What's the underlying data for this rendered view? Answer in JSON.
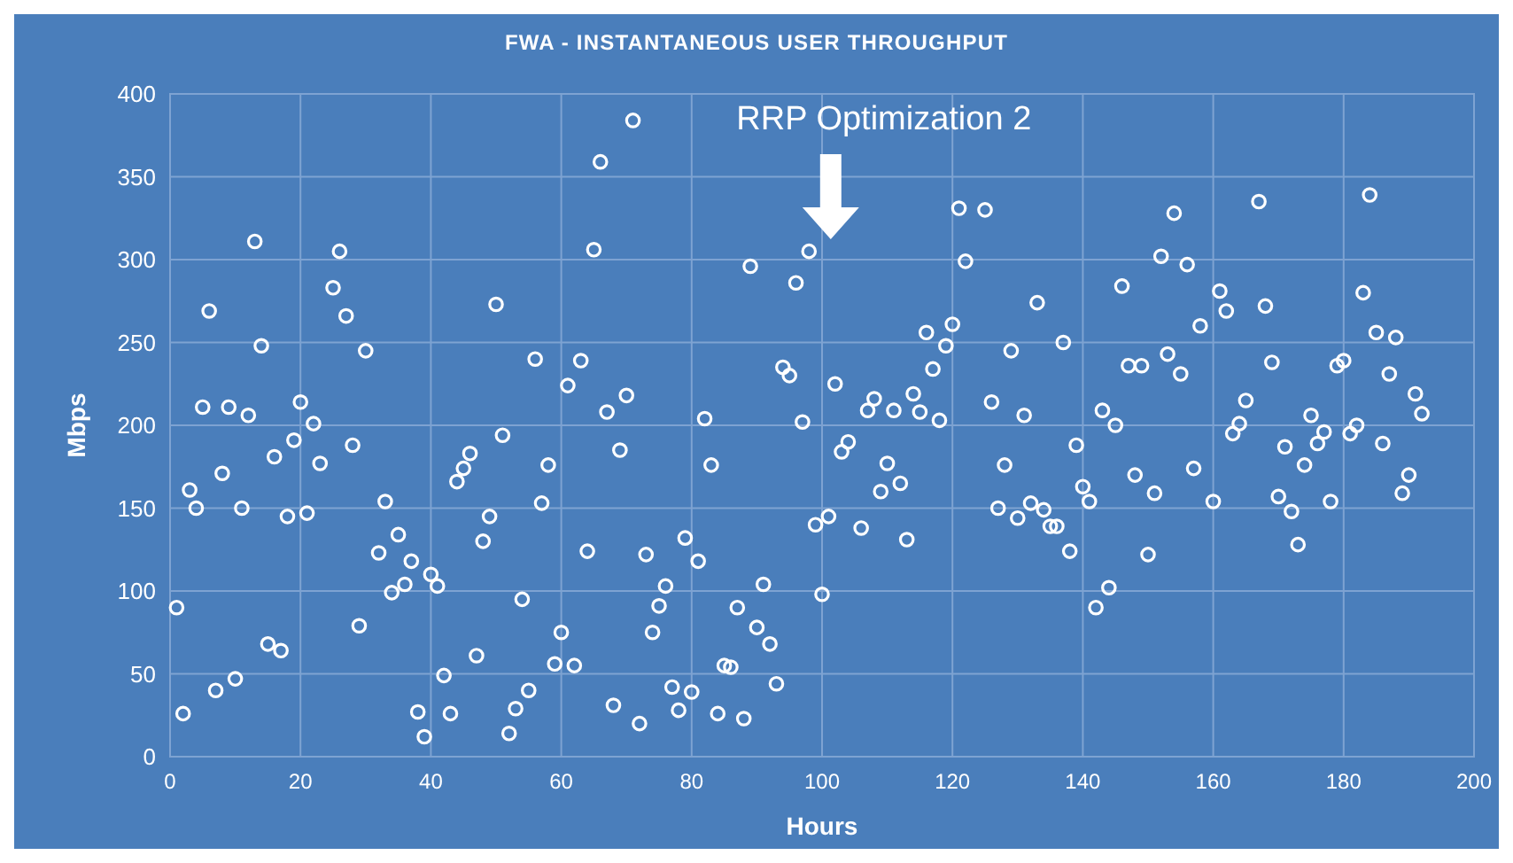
{
  "chart_data": {
    "type": "scatter",
    "title": "FWA - INSTANTANEOUS USER THROUGHPUT",
    "xlabel": "Hours",
    "ylabel": "Mbps",
    "xlim": [
      0,
      200
    ],
    "xticks": [
      0,
      20,
      40,
      60,
      80,
      100,
      120,
      140,
      160,
      180,
      200
    ],
    "ylim": [
      0,
      400
    ],
    "yticks": [
      0,
      50,
      100,
      150,
      200,
      250,
      300,
      350,
      400
    ],
    "grid": true,
    "marker": "circle",
    "annotations": [
      "RRP Optimization 2"
    ],
    "series": [
      {
        "color": "#ffffff",
        "x": [
          1,
          2,
          3,
          4,
          5,
          6,
          7,
          8,
          9,
          10,
          11,
          12,
          13,
          14,
          15,
          16,
          17,
          18,
          19,
          20,
          21,
          22,
          23,
          25,
          26,
          27,
          28,
          29,
          30,
          32,
          33,
          34,
          35,
          36,
          37,
          38,
          39,
          40,
          41,
          42,
          43,
          44,
          45,
          46,
          47,
          48,
          49,
          50,
          51,
          52,
          53,
          54,
          55,
          56,
          57,
          58,
          59,
          60,
          61,
          62,
          63,
          64,
          65,
          66,
          67,
          68,
          69,
          70,
          71,
          72,
          73,
          74,
          75,
          76,
          77,
          78,
          79,
          80,
          81,
          82,
          83,
          84,
          85,
          86,
          87,
          88,
          89,
          90,
          91,
          92,
          93,
          94,
          95,
          96,
          97,
          98,
          99,
          100,
          101,
          102,
          103,
          104,
          106,
          107,
          108,
          109,
          110,
          111,
          112,
          113,
          114,
          115,
          116,
          117,
          118,
          119,
          120,
          121,
          122,
          125,
          126,
          127,
          128,
          129,
          130,
          131,
          132,
          133,
          134,
          135,
          136,
          137,
          138,
          139,
          140,
          141,
          142,
          143,
          144,
          145,
          146,
          147,
          148,
          149,
          150,
          151,
          152,
          153,
          154,
          155,
          156,
          157,
          158,
          160,
          161,
          162,
          163,
          164,
          165,
          167,
          168,
          169,
          170,
          171,
          172,
          173,
          174,
          175,
          176,
          177,
          178,
          179,
          180,
          181,
          182,
          183,
          184,
          185,
          186,
          187,
          188,
          189,
          190,
          191,
          192
        ],
        "values": [
          90,
          26,
          161,
          150,
          211,
          269,
          40,
          171,
          211,
          47,
          150,
          206,
          311,
          248,
          68,
          181,
          64,
          145,
          191,
          214,
          147,
          201,
          177,
          283,
          305,
          266,
          188,
          79,
          245,
          123,
          154,
          99,
          134,
          104,
          118,
          27,
          12,
          110,
          103,
          49,
          26,
          166,
          174,
          183,
          61,
          130,
          145,
          273,
          194,
          14,
          29,
          95,
          40,
          240,
          153,
          176,
          56,
          75,
          224,
          55,
          239,
          124,
          306,
          359,
          208,
          31,
          185,
          218,
          384,
          20,
          122,
          75,
          91,
          103,
          42,
          28,
          132,
          39,
          118,
          204,
          176,
          26,
          55,
          54,
          90,
          23,
          296,
          78,
          104,
          68,
          44,
          235,
          230,
          286,
          202,
          305,
          140,
          98,
          145,
          225,
          184,
          190,
          138,
          209,
          216,
          160,
          177,
          209,
          165,
          131,
          219,
          208,
          256,
          234,
          203,
          248,
          261,
          331,
          299,
          330,
          214,
          150,
          176,
          245,
          144,
          206,
          153,
          274,
          149,
          139,
          139,
          250,
          124,
          188,
          163,
          154,
          90,
          209,
          102,
          200,
          284,
          236,
          170,
          236,
          122,
          159,
          302,
          243,
          328,
          231,
          297,
          174,
          260,
          154,
          281,
          269,
          195,
          201,
          215,
          335,
          272,
          238,
          157,
          187,
          148,
          128,
          176,
          206,
          189,
          196,
          154,
          236,
          239,
          195,
          200,
          280,
          339,
          256,
          189,
          231,
          253,
          159,
          170,
          219,
          207
        ]
      }
    ]
  }
}
